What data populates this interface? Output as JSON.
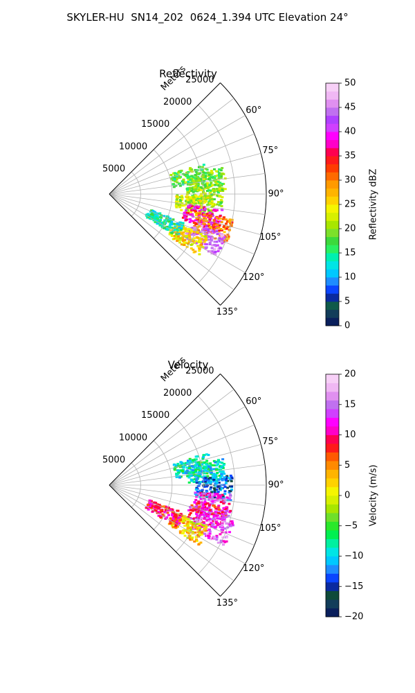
{
  "suptitle": "SKYLER-HU  SN14_202  0624_1.394 UTC Elevation 24°",
  "chart_data": [
    {
      "type": "heatmap",
      "subtype": "polar-sector",
      "title": "Reflectivity",
      "radial_label": "Meters",
      "radial_ticks": [
        "5000",
        "10000",
        "15000",
        "20000",
        "25000"
      ],
      "radial_range": [
        0,
        25000
      ],
      "angle_ticks": [
        "60°",
        "75°",
        "90°",
        "105°",
        "120°",
        "135°"
      ],
      "angle_range_deg": [
        45,
        135
      ],
      "grid": true,
      "colorbar": {
        "label": "Reflectivity dBZ",
        "range": [
          0,
          50
        ],
        "ticks": [
          "0",
          "5",
          "10",
          "15",
          "20",
          "25",
          "30",
          "35",
          "40",
          "45",
          "50"
        ]
      },
      "echoes": [
        {
          "az_deg": 77,
          "range_m": 13000,
          "value": 18
        },
        {
          "az_deg": 82,
          "range_m": 15500,
          "value": 19
        },
        {
          "az_deg": 90,
          "range_m": 15000,
          "value": 20
        },
        {
          "az_deg": 96,
          "range_m": 13500,
          "value": 22
        },
        {
          "az_deg": 103,
          "range_m": 15000,
          "value": 38
        },
        {
          "az_deg": 107,
          "range_m": 17000,
          "value": 30
        },
        {
          "az_deg": 114,
          "range_m": 16500,
          "value": 44
        },
        {
          "az_deg": 119,
          "range_m": 14000,
          "value": 25
        },
        {
          "az_deg": 116,
          "range_m": 9500,
          "value": 14
        }
      ],
      "colors": {
        "low": "#0a1f5c",
        "mid_blue": "#1560ff",
        "cyan": "#00e5e5",
        "green": "#3cd93c",
        "yellow": "#f5f500",
        "orange": "#ff9a00",
        "red": "#ff1a1a",
        "magenta": "#ff00ff",
        "violet": "#b040ff",
        "pink": "#f7d0f7"
      }
    },
    {
      "type": "heatmap",
      "subtype": "polar-sector",
      "title": "Velocity",
      "radial_label": "Meters",
      "radial_ticks": [
        "5000",
        "10000",
        "15000",
        "20000",
        "25000"
      ],
      "radial_range": [
        0,
        25000
      ],
      "angle_ticks": [
        "60°",
        "75°",
        "90°",
        "105°",
        "120°",
        "135°"
      ],
      "angle_range_deg": [
        45,
        135
      ],
      "grid": true,
      "colorbar": {
        "label": "Velocity (m/s)",
        "range": [
          -20,
          20
        ],
        "ticks": [
          "−20",
          "−15",
          "−10",
          "−5",
          "0",
          "5",
          "10",
          "15",
          "20"
        ]
      },
      "echoes": [
        {
          "az_deg": 77,
          "range_m": 13500,
          "value": -8
        },
        {
          "az_deg": 82,
          "range_m": 15500,
          "value": -9
        },
        {
          "az_deg": 91,
          "range_m": 16500,
          "value": -14
        },
        {
          "az_deg": 100,
          "range_m": 16500,
          "value": 13
        },
        {
          "az_deg": 106,
          "range_m": 16000,
          "value": 10
        },
        {
          "az_deg": 112,
          "range_m": 17500,
          "value": 14
        },
        {
          "az_deg": 118,
          "range_m": 14000,
          "value": 2
        },
        {
          "az_deg": 116,
          "range_m": 9500,
          "value": 9
        }
      ],
      "colors": {
        "low": "#0a1f5c",
        "blue": "#1560ff",
        "cyan": "#00e5e5",
        "green": "#3cd93c",
        "yellow": "#f5f500",
        "orange": "#ff9a00",
        "red": "#ff1a1a",
        "magenta": "#ff00ff",
        "pink": "#f7d0f7"
      }
    }
  ]
}
